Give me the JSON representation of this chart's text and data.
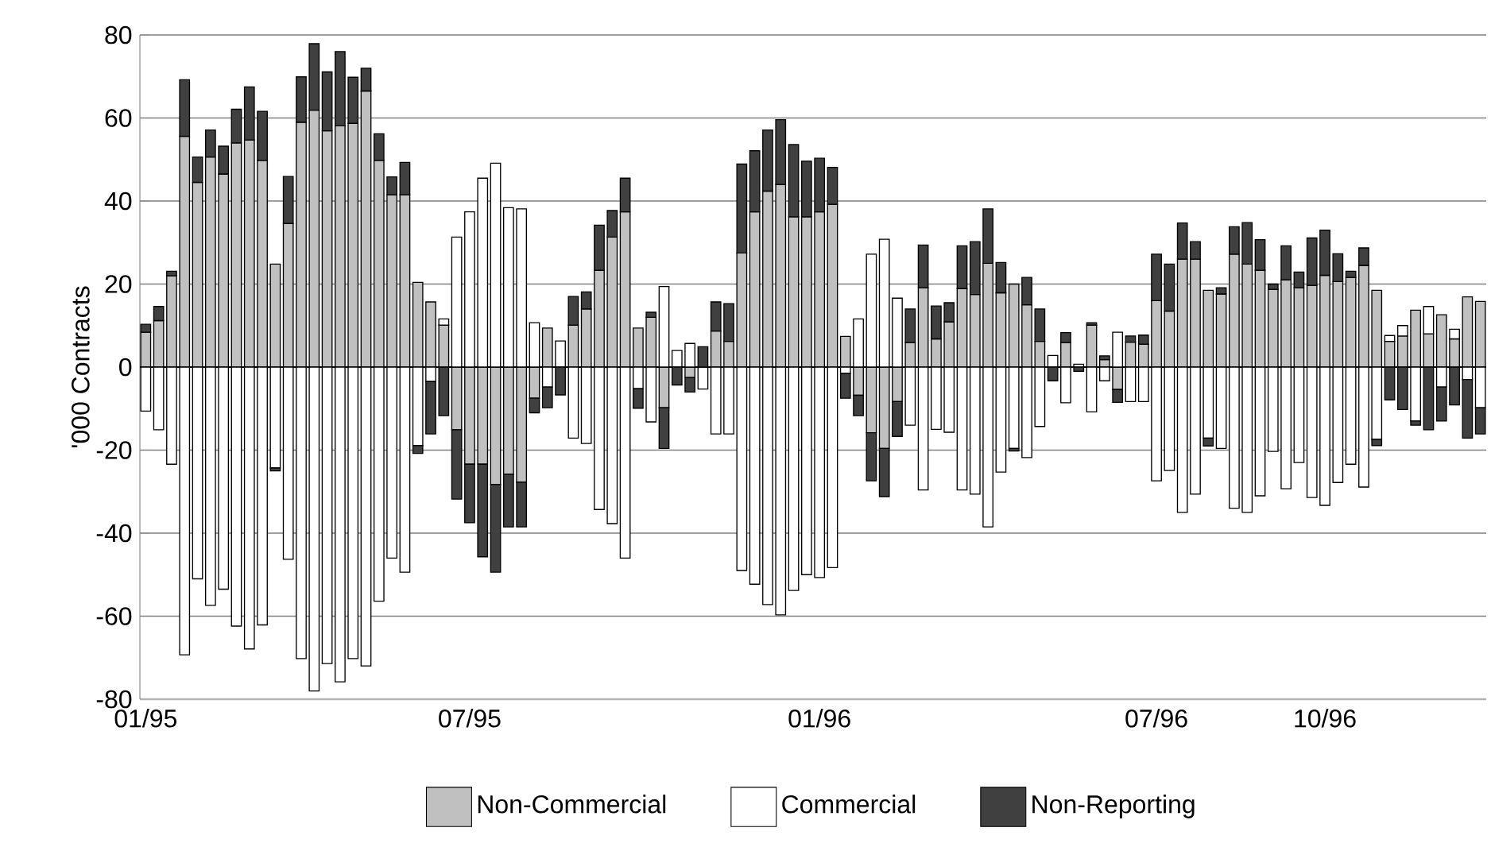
{
  "chart_data": {
    "type": "bar",
    "stacked": true,
    "ylabel": "'000 Contracts",
    "categories": [
      "01/95",
      null,
      null,
      null,
      null,
      null,
      null,
      null,
      null,
      null,
      null,
      null,
      null,
      null,
      null,
      null,
      null,
      null,
      null,
      null,
      null,
      null,
      null,
      null,
      null,
      "07/95",
      null,
      null,
      null,
      null,
      null,
      null,
      null,
      null,
      null,
      null,
      null,
      null,
      null,
      null,
      null,
      null,
      null,
      null,
      null,
      null,
      null,
      null,
      null,
      null,
      null,
      null,
      "01/96",
      null,
      null,
      null,
      null,
      null,
      null,
      null,
      null,
      null,
      null,
      null,
      null,
      null,
      null,
      null,
      null,
      null,
      null,
      null,
      null,
      null,
      null,
      null,
      null,
      null,
      "07/96",
      null,
      null,
      null,
      null,
      null,
      null,
      null,
      null,
      null,
      null,
      null,
      null,
      "10/96",
      null,
      null,
      null,
      null,
      null,
      null,
      null,
      null,
      null,
      null,
      null,
      null
    ],
    "series": [
      {
        "name": "Non-Commercial",
        "color": "#c0c0c0",
        "values": [
          8.4,
          11.2,
          22,
          55.6,
          44.5,
          50.6,
          46.5,
          54,
          54.7,
          49.8,
          24.8,
          34.6,
          59,
          61.9,
          56.9,
          58.1,
          58.7,
          66.5,
          49.8,
          41.5,
          41.5,
          20.4,
          15.7,
          10.1,
          -15.1,
          -23.4,
          -23.4,
          -28.3,
          -25.8,
          -27.7,
          -7.5,
          9.4,
          0,
          10.1,
          14,
          23.3,
          31.3,
          37.4,
          9.4,
          12,
          -9.8,
          0,
          -2.5,
          0,
          8.7,
          6.2,
          27.5,
          37.4,
          42.4,
          44,
          36.2,
          36.2,
          37.4,
          39.2,
          7.4,
          -6.8,
          -15.8,
          -19.6,
          -8.3,
          5.9,
          19.1,
          6.8,
          10.9,
          18.9,
          17.5,
          25,
          17.9,
          20,
          15,
          6.2,
          0,
          5.9,
          0,
          10.1,
          1.8,
          -5.4,
          6,
          5.5,
          16,
          13.5,
          26,
          26,
          18.5,
          17.6,
          27.2,
          24.8,
          23.3,
          18.7,
          21,
          19.1,
          19.7,
          22.1,
          20.6,
          21.6,
          24.5,
          18.5,
          6.2,
          7.5,
          13.7,
          8,
          12.6,
          6.8,
          16.9,
          15.8
        ]
      },
      {
        "name": "Commercial",
        "color": "#ffffff",
        "values": [
          -10.6,
          -15.1,
          -23.4,
          -69.3,
          -51,
          -57.4,
          -53.5,
          -62.4,
          -67.9,
          -62.1,
          -24.3,
          -46.3,
          -70.2,
          -78,
          -71.4,
          -75.8,
          -70.2,
          -72,
          -56.4,
          -46,
          -49.4,
          -18.9,
          -3.5,
          1.5,
          31.3,
          37.4,
          45.5,
          49.1,
          38.4,
          38.1,
          10.7,
          -4.8,
          6.3,
          -17.1,
          -18.4,
          -34.3,
          -37.7,
          -46,
          -5.2,
          -13.2,
          19.4,
          4,
          5.7,
          -5.3,
          -16.1,
          -16.1,
          -49,
          -52.3,
          -57.2,
          -59.7,
          -53.8,
          -50,
          -50.7,
          -48.3,
          -1.5,
          11.6,
          27.2,
          30.8,
          16.6,
          -14,
          -29.6,
          -15,
          -15.7,
          -29.6,
          -30.6,
          -38.5,
          -25.3,
          -19.6,
          -21.8,
          -14.3,
          2.8,
          -8.6,
          0.7,
          -10.8,
          -3.3,
          8.4,
          -8.3,
          -8.3,
          -27.4,
          -24.9,
          -35,
          -30.6,
          -17.1,
          -19.6,
          -34,
          -35,
          -31,
          -20.3,
          -29.3,
          -23,
          -31.4,
          -33.3,
          -27.8,
          -23.4,
          -28.9,
          -17.4,
          1.4,
          2.5,
          -13,
          6.6,
          -4.8,
          2.3,
          -3,
          -9.8
        ]
      },
      {
        "name": "Non-Reporting",
        "color": "#404040",
        "values": [
          1.9,
          3.4,
          1.1,
          13.6,
          6.1,
          6.5,
          6.7,
          8.1,
          12.8,
          11.8,
          -0.7,
          11.3,
          10.9,
          16,
          14.2,
          17.9,
          11.1,
          5.5,
          6.4,
          4.3,
          7.8,
          -1.9,
          -12.6,
          -11.7,
          -16.7,
          -14.1,
          -22.3,
          -21.1,
          -12.7,
          -10.8,
          -3.5,
          -5,
          -6.7,
          6.9,
          4.1,
          10.9,
          6.4,
          8.1,
          -4.7,
          1.2,
          -9.8,
          -4.3,
          -3.5,
          4.9,
          7,
          9.1,
          21.4,
          14.7,
          14.7,
          15.6,
          17.4,
          13.4,
          12.9,
          8.9,
          -6,
          -4.9,
          -11.6,
          -11.6,
          -8.4,
          8.1,
          10.3,
          7.9,
          4.6,
          10.3,
          12.7,
          13.1,
          7.3,
          -0.6,
          6.6,
          7.8,
          -3.3,
          2.4,
          -1,
          0.6,
          0.9,
          -3.1,
          1.5,
          2.2,
          11.2,
          11.3,
          8.7,
          4.2,
          -1.9,
          1.5,
          6.6,
          10,
          7.4,
          1.3,
          8.2,
          3.8,
          11.4,
          10.9,
          6.7,
          1.5,
          4.2,
          -1.5,
          -7.9,
          -10.2,
          -1,
          -15.1,
          -8.2,
          -9.1,
          -14.1,
          -6.3
        ]
      }
    ],
    "ylim": [
      -80,
      80
    ],
    "yticks": [
      -80,
      -60,
      -40,
      -20,
      0,
      20,
      40,
      60,
      80
    ],
    "grid": "y",
    "legend": "bottom",
    "ref_lines": [
      {
        "axis": "y",
        "value": 0,
        "color": "#000000"
      }
    ]
  }
}
